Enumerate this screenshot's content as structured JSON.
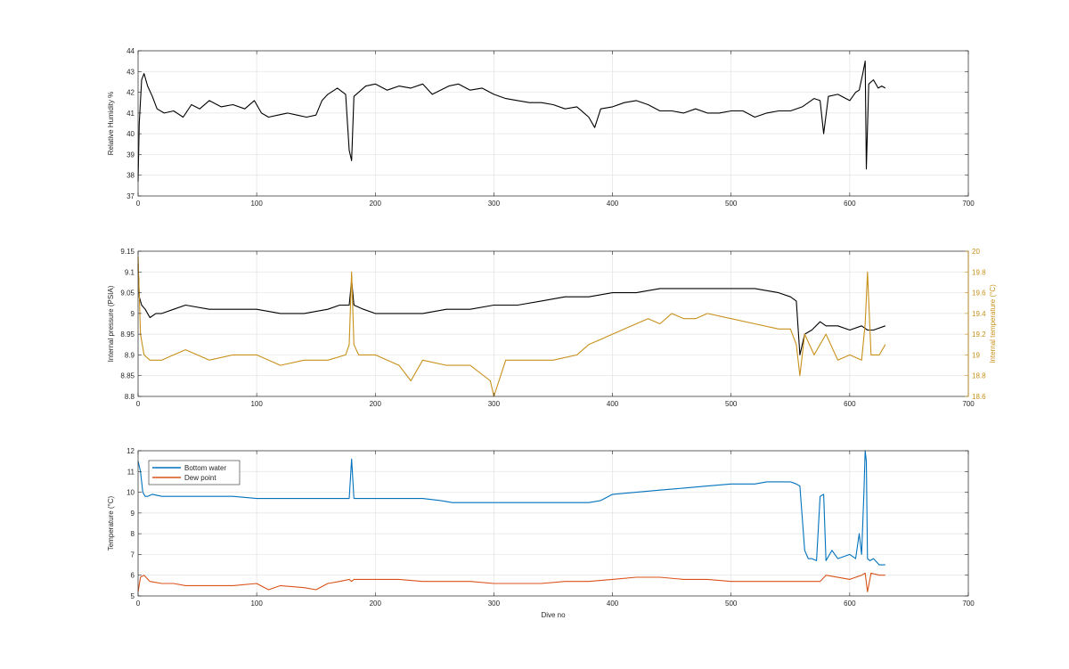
{
  "chart_data": [
    {
      "type": "line",
      "ylabel": "Relative Humidity %",
      "xlim": [
        0,
        700
      ],
      "ylim": [
        37,
        44
      ],
      "xticks": [
        0,
        100,
        200,
        300,
        400,
        500,
        600,
        700
      ],
      "yticks": [
        37,
        38,
        39,
        40,
        41,
        42,
        43,
        44
      ],
      "grid": true,
      "series": [
        {
          "color": "#000000",
          "x": [
            0,
            1,
            3,
            5,
            8,
            12,
            16,
            22,
            30,
            38,
            45,
            52,
            60,
            70,
            80,
            90,
            98,
            104,
            110,
            118,
            126,
            134,
            142,
            150,
            155,
            160,
            168,
            175,
            178,
            180,
            182,
            186,
            192,
            200,
            210,
            220,
            230,
            240,
            248,
            255,
            262,
            270,
            280,
            290,
            300,
            310,
            320,
            330,
            340,
            350,
            360,
            370,
            380,
            385,
            390,
            400,
            410,
            420,
            430,
            440,
            450,
            460,
            470,
            480,
            490,
            500,
            510,
            520,
            530,
            540,
            550,
            560,
            570,
            575,
            578,
            582,
            590,
            600,
            605,
            608,
            611,
            613,
            614,
            616,
            620,
            624,
            627,
            630
          ],
          "y": [
            37.7,
            40.5,
            42.6,
            42.9,
            42.3,
            41.8,
            41.2,
            41.0,
            41.1,
            40.8,
            41.4,
            41.2,
            41.6,
            41.3,
            41.4,
            41.2,
            41.6,
            41.0,
            40.8,
            40.9,
            41.0,
            40.9,
            40.8,
            40.9,
            41.6,
            41.9,
            42.2,
            41.9,
            39.2,
            38.7,
            41.8,
            42.0,
            42.3,
            42.4,
            42.1,
            42.3,
            42.2,
            42.4,
            41.9,
            42.1,
            42.3,
            42.4,
            42.1,
            42.2,
            41.9,
            41.7,
            41.6,
            41.5,
            41.5,
            41.4,
            41.2,
            41.3,
            40.8,
            40.3,
            41.2,
            41.3,
            41.5,
            41.6,
            41.4,
            41.1,
            41.1,
            41.0,
            41.2,
            41.0,
            41.0,
            41.1,
            41.1,
            40.8,
            41.0,
            41.1,
            41.1,
            41.3,
            41.7,
            41.6,
            40.0,
            41.8,
            41.9,
            41.6,
            42.0,
            42.1,
            42.9,
            43.5,
            38.3,
            42.4,
            42.6,
            42.2,
            42.3,
            42.2
          ]
        }
      ]
    },
    {
      "type": "line",
      "ylabel": "Internal pressure (PSIA)",
      "y2label": "Internal temperature (°C)",
      "xlim": [
        0,
        700
      ],
      "ylim": [
        8.8,
        9.15
      ],
      "y2lim": [
        18.6,
        20
      ],
      "xticks": [
        0,
        100,
        200,
        300,
        400,
        500,
        600,
        700
      ],
      "yticks": [
        8.8,
        8.85,
        8.9,
        8.95,
        9,
        9.05,
        9.1,
        9.15
      ],
      "y2ticks": [
        18.6,
        18.8,
        19,
        19.2,
        19.4,
        19.6,
        19.8,
        20
      ],
      "grid": true,
      "series": [
        {
          "color": "#000000",
          "axis": "left",
          "x": [
            0,
            1,
            3,
            6,
            10,
            15,
            20,
            30,
            40,
            60,
            80,
            100,
            120,
            140,
            160,
            170,
            178,
            180,
            182,
            190,
            200,
            220,
            240,
            260,
            280,
            300,
            320,
            340,
            360,
            380,
            400,
            420,
            440,
            460,
            480,
            500,
            520,
            540,
            550,
            555,
            558,
            562,
            568,
            575,
            580,
            590,
            600,
            610,
            615,
            620,
            630
          ],
          "y": [
            9.12,
            9.04,
            9.02,
            9.01,
            8.99,
            9.0,
            9.0,
            9.01,
            9.02,
            9.01,
            9.01,
            9.01,
            9.0,
            9.0,
            9.01,
            9.02,
            9.02,
            9.08,
            9.02,
            9.01,
            9.0,
            9.0,
            9.0,
            9.01,
            9.01,
            9.02,
            9.02,
            9.03,
            9.04,
            9.04,
            9.05,
            9.05,
            9.06,
            9.06,
            9.06,
            9.06,
            9.06,
            9.05,
            9.04,
            9.03,
            8.9,
            8.95,
            8.96,
            8.98,
            8.97,
            8.97,
            8.96,
            8.97,
            8.96,
            8.96,
            8.97
          ]
        },
        {
          "color": "#c8901a",
          "axis": "right",
          "x": [
            0,
            2,
            5,
            10,
            20,
            30,
            40,
            60,
            80,
            100,
            120,
            140,
            160,
            175,
            178,
            180,
            182,
            186,
            200,
            220,
            230,
            240,
            260,
            280,
            297,
            300,
            310,
            330,
            350,
            370,
            380,
            390,
            400,
            410,
            420,
            430,
            440,
            450,
            460,
            470,
            480,
            500,
            520,
            540,
            550,
            555,
            558,
            562,
            570,
            580,
            590,
            600,
            610,
            613,
            615,
            618,
            625,
            630
          ],
          "y": [
            19.95,
            19.2,
            19.0,
            18.95,
            18.95,
            19.0,
            19.05,
            18.95,
            19.0,
            19.0,
            18.9,
            18.95,
            18.95,
            19.0,
            19.1,
            19.8,
            19.1,
            19.0,
            19.0,
            18.9,
            18.75,
            18.95,
            18.9,
            18.9,
            18.75,
            18.6,
            18.95,
            18.95,
            18.95,
            19.0,
            19.1,
            19.15,
            19.2,
            19.25,
            19.3,
            19.35,
            19.3,
            19.4,
            19.35,
            19.35,
            19.4,
            19.35,
            19.3,
            19.25,
            19.25,
            19.1,
            18.8,
            19.2,
            19.0,
            19.2,
            18.95,
            19.0,
            18.95,
            19.3,
            19.8,
            19.0,
            19.0,
            19.1
          ]
        }
      ]
    },
    {
      "type": "line",
      "xlabel": "Dive no",
      "ylabel": "Temperature (°C)",
      "xlim": [
        0,
        700
      ],
      "ylim": [
        5,
        12
      ],
      "xticks": [
        0,
        100,
        200,
        300,
        400,
        500,
        600,
        700
      ],
      "yticks": [
        5,
        6,
        7,
        8,
        9,
        10,
        11,
        12
      ],
      "grid": true,
      "legend_placement": "top-left",
      "series": [
        {
          "name": "Bottom water",
          "color": "#0072bd",
          "x": [
            0,
            2,
            4,
            6,
            8,
            12,
            20,
            40,
            60,
            80,
            100,
            120,
            140,
            160,
            175,
            178,
            180,
            182,
            185,
            200,
            220,
            240,
            255,
            265,
            280,
            300,
            320,
            340,
            360,
            380,
            390,
            400,
            420,
            440,
            460,
            480,
            500,
            520,
            530,
            540,
            545,
            550,
            555,
            558,
            562,
            565,
            568,
            572,
            575,
            578,
            580,
            585,
            590,
            600,
            605,
            608,
            610,
            612,
            613,
            614,
            615,
            617,
            620,
            625,
            630
          ],
          "y": [
            11.5,
            11.0,
            10.0,
            9.8,
            9.8,
            9.9,
            9.8,
            9.8,
            9.8,
            9.8,
            9.7,
            9.7,
            9.7,
            9.7,
            9.7,
            9.7,
            11.6,
            9.7,
            9.7,
            9.7,
            9.7,
            9.7,
            9.6,
            9.5,
            9.5,
            9.5,
            9.5,
            9.5,
            9.5,
            9.5,
            9.6,
            9.9,
            10.0,
            10.1,
            10.2,
            10.3,
            10.4,
            10.4,
            10.5,
            10.5,
            10.5,
            10.5,
            10.4,
            10.3,
            7.2,
            6.8,
            6.8,
            6.7,
            9.8,
            9.9,
            6.7,
            7.2,
            6.8,
            7.0,
            6.8,
            8.0,
            7.0,
            10.0,
            12.0,
            11.5,
            6.8,
            6.7,
            6.8,
            6.5,
            6.5
          ]
        },
        {
          "name": "Dew point",
          "color": "#d95319",
          "x": [
            0,
            2,
            5,
            10,
            20,
            30,
            40,
            60,
            80,
            100,
            110,
            120,
            140,
            150,
            160,
            170,
            178,
            180,
            182,
            200,
            220,
            240,
            260,
            280,
            300,
            320,
            340,
            360,
            380,
            400,
            420,
            440,
            460,
            480,
            500,
            520,
            540,
            560,
            575,
            580,
            600,
            610,
            613,
            615,
            618,
            625,
            630
          ],
          "y": [
            5.2,
            5.9,
            6.0,
            5.7,
            5.6,
            5.6,
            5.5,
            5.5,
            5.5,
            5.6,
            5.3,
            5.5,
            5.4,
            5.3,
            5.6,
            5.7,
            5.8,
            5.7,
            5.8,
            5.8,
            5.8,
            5.7,
            5.7,
            5.7,
            5.6,
            5.6,
            5.6,
            5.7,
            5.7,
            5.8,
            5.9,
            5.9,
            5.8,
            5.8,
            5.7,
            5.7,
            5.7,
            5.7,
            5.7,
            6.0,
            5.8,
            6.0,
            6.1,
            5.2,
            6.1,
            6.0,
            6.0
          ]
        }
      ]
    }
  ]
}
